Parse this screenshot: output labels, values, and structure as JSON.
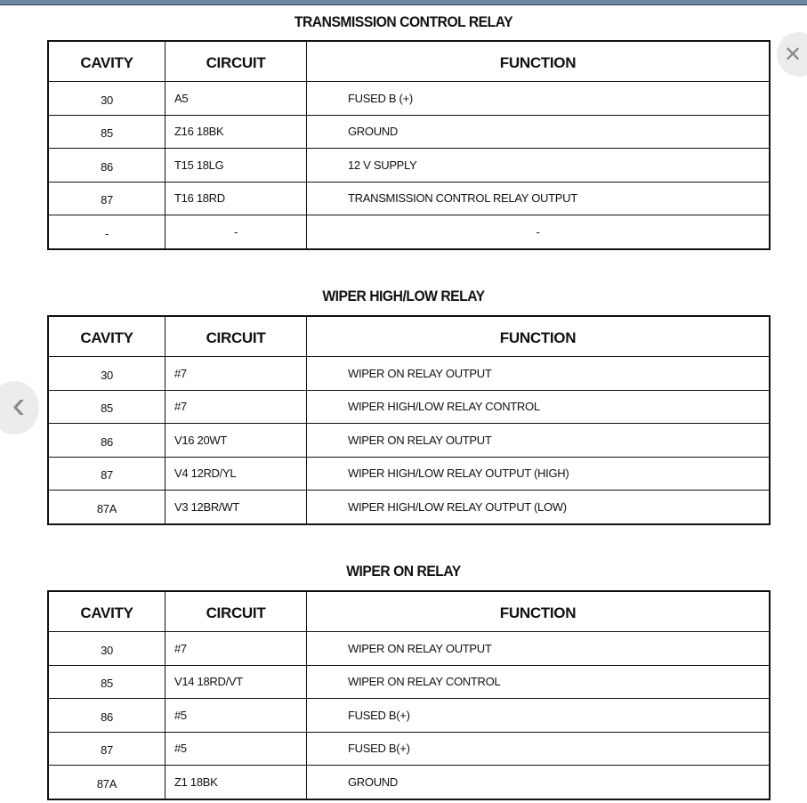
{
  "headers": {
    "cavity": "CAVITY",
    "circuit": "CIRCUIT",
    "function": "FUNCTION"
  },
  "tables": [
    {
      "title": "TRANSMISSION CONTROL RELAY",
      "rows": [
        [
          "30",
          "A5",
          "FUSED B (+)"
        ],
        [
          "85",
          "Z16 18BK",
          "GROUND"
        ],
        [
          "86",
          "T15 18LG",
          "12 V SUPPLY"
        ],
        [
          "87",
          "T16 18RD",
          "TRANSMISSION CONTROL RELAY OUTPUT"
        ],
        [
          "-",
          "-",
          "-"
        ]
      ]
    },
    {
      "title": "WIPER HIGH/LOW RELAY",
      "rows": [
        [
          "30",
          "#7",
          "WIPER ON RELAY OUTPUT"
        ],
        [
          "85",
          "#7",
          "WIPER HIGH/LOW RELAY CONTROL"
        ],
        [
          "86",
          "V16 20WT",
          "WIPER ON RELAY OUTPUT"
        ],
        [
          "87",
          "V4 12RD/YL",
          "WIPER HIGH/LOW RELAY OUTPUT (HIGH)"
        ],
        [
          "87A",
          "V3 12BR/WT",
          "WIPER HIGH/LOW RELAY OUTPUT (LOW)"
        ]
      ]
    },
    {
      "title": "WIPER ON RELAY",
      "rows": [
        [
          "30",
          "#7",
          "WIPER ON RELAY OUTPUT"
        ],
        [
          "85",
          "V14 18RD/VT",
          "WIPER ON RELAY CONTROL"
        ],
        [
          "86",
          "#5",
          "FUSED B(+)"
        ],
        [
          "87",
          "#5",
          "FUSED B(+)"
        ],
        [
          "87A",
          "Z1 18BK",
          "GROUND"
        ]
      ]
    }
  ],
  "nav": {
    "close_icon": "close-icon",
    "prev_icon": "chevron-left-icon",
    "close_glyph": "✕",
    "prev_glyph": "‹"
  },
  "colors": {
    "topbar": "#6f88a6"
  }
}
